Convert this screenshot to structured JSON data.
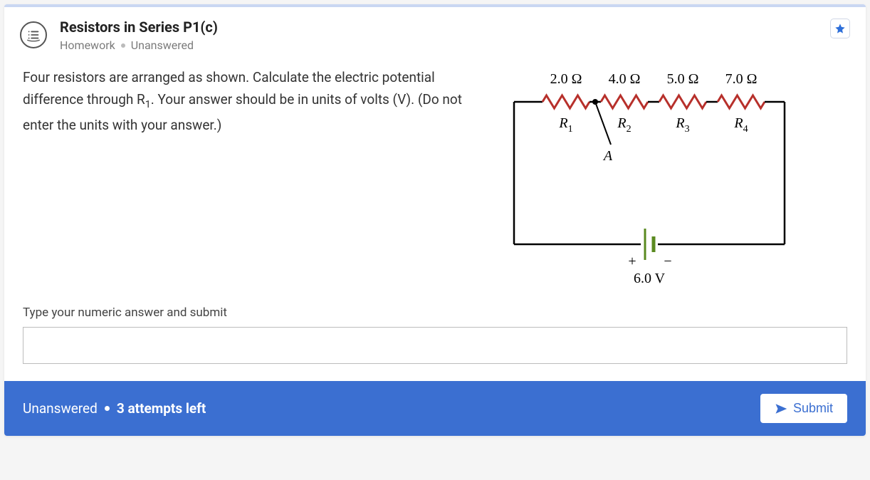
{
  "header": {
    "title": "Resistors in Series P1(c)",
    "category": "Homework",
    "status": "Unanswered"
  },
  "question": {
    "prompt_html": "Four resistors are arranged as shown. Calculate the electric potential difference through R<sub>1</sub>. Your answer should be in units of volts (V). (Do not enter the units with your answer.)"
  },
  "circuit": {
    "resistors": [
      {
        "name": "R1",
        "label": "R",
        "sub": "1",
        "value": "2.0 Ω"
      },
      {
        "name": "R2",
        "label": "R",
        "sub": "2",
        "value": "4.0 Ω"
      },
      {
        "name": "R3",
        "label": "R",
        "sub": "3",
        "value": "5.0 Ω"
      },
      {
        "name": "R4",
        "label": "R",
        "sub": "4",
        "value": "7.0 Ω"
      }
    ],
    "node_label": "A",
    "battery_voltage": "6.0 V",
    "battery_pos": "+",
    "battery_neg": "−",
    "wire_color": "#000000",
    "resistor_color": "#b7302b",
    "battery_color": "#5a8a1f"
  },
  "input": {
    "label": "Type your numeric answer and submit",
    "value": ""
  },
  "footer": {
    "status": "Unanswered",
    "attempts": "3 attempts left",
    "submit_label": "Submit"
  }
}
